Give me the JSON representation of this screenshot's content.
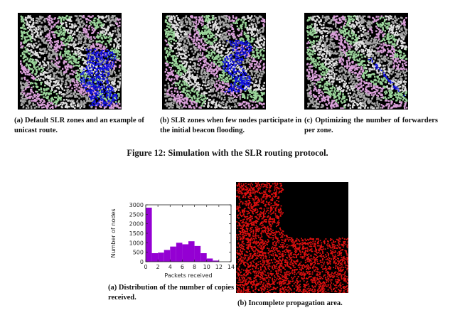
{
  "figure12": {
    "title": "Figure 12: Simulation with the SLR routing protocol.",
    "subfigures": [
      {
        "id": "a",
        "caption": "(a) Default SLR zones and an example of unicast route."
      },
      {
        "id": "b",
        "caption": "(b) SLR zones when few nodes participate in the initial beacon flooding."
      },
      {
        "id": "c",
        "caption": "(c) Optimizing the number of forwarders per zone."
      }
    ],
    "zone_colors": [
      "#9bd59b",
      "#d9a0d9",
      "#a8a8a8",
      "#e0e0e0"
    ],
    "route_color": "#1010e0"
  },
  "figure13": {
    "caption_a": "(a) Distribution of the number of copies received.",
    "caption_b": "(b) Incomplete propagation area.",
    "propagation_color": "#e01010"
  },
  "chart_data": {
    "type": "bar",
    "title": "",
    "xlabel": "Packets received",
    "ylabel": "Number of nodes",
    "xlim": [
      0,
      14
    ],
    "ylim": [
      0,
      3000
    ],
    "xticks": [
      "0",
      "2",
      "4",
      "6",
      "8",
      "10",
      "12",
      "14"
    ],
    "yticks": [
      "0",
      "500",
      "1000",
      "1500",
      "2000",
      "2500",
      "3000"
    ],
    "bar_color": "#9400d3",
    "bin_width": 1,
    "x": [
      0,
      1,
      2,
      3,
      4,
      5,
      6,
      7,
      8,
      9,
      10,
      11
    ],
    "values": [
      2850,
      450,
      480,
      620,
      800,
      1000,
      920,
      1080,
      830,
      450,
      170,
      60
    ]
  }
}
